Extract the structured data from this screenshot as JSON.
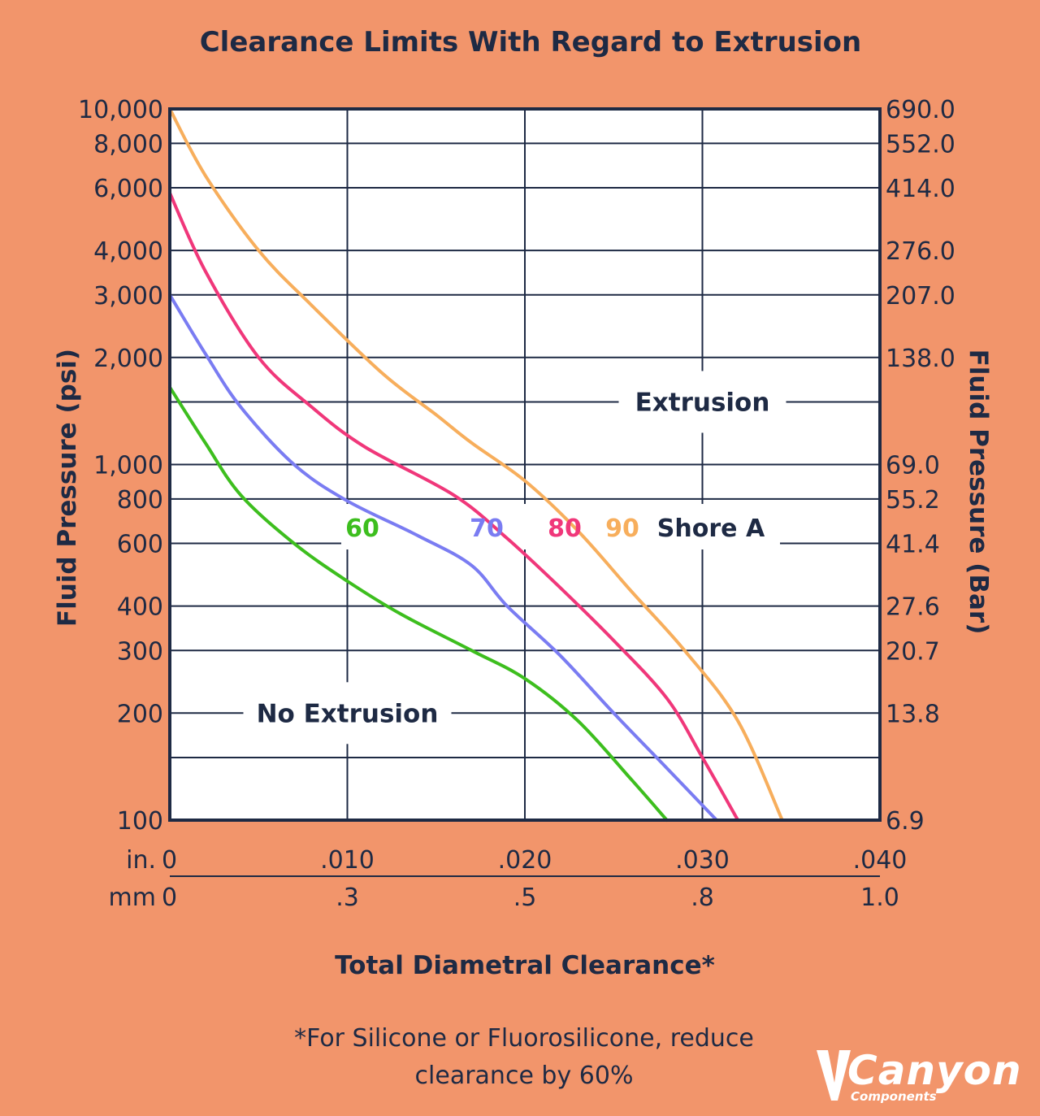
{
  "title": "Clearance Limits With Regard to Extrusion",
  "footnote_line1": "*For Silicone or Fluorosilicone, reduce",
  "footnote_line2": "clearance by 60%",
  "logo": {
    "name": "Canyon",
    "sub": "Components"
  },
  "colors": {
    "background": "#F2956B",
    "text": "#1E2A44",
    "shore_60": "#3DBE1E",
    "shore_70": "#7A7CF2",
    "shore_80": "#F0377A",
    "shore_90": "#F7AE5C"
  },
  "chart_data": {
    "type": "line",
    "title": "Clearance Limits With Regard to Extrusion",
    "xlabel": "Total Diametral Clearance*",
    "ylabel_left": "Fluid Pressure (psi)",
    "ylabel_right": "Fluid Pressure (Bar)",
    "x_scale": "linear",
    "y_scale": "log",
    "xlim": [
      0,
      0.04
    ],
    "ylim": [
      100,
      10000
    ],
    "grid": true,
    "x_axis_in": {
      "unit_label": "in.",
      "ticks": [
        0,
        0.01,
        0.02,
        0.03,
        0.04
      ],
      "tick_labels": [
        "0",
        ".010",
        ".020",
        ".030",
        ".040"
      ]
    },
    "x_axis_mm": {
      "unit_label": "mm",
      "ticks": [
        0,
        0.01,
        0.02,
        0.03,
        0.04
      ],
      "tick_labels": [
        "0",
        ".3",
        ".5",
        ".8",
        "1.0"
      ]
    },
    "y_left_ticks": [
      10000,
      8000,
      6000,
      4000,
      3000,
      2000,
      1000,
      800,
      600,
      400,
      300,
      200,
      100
    ],
    "y_left_tick_labels": [
      "10,000",
      "8,000",
      "6,000",
      "4,000",
      "3,000",
      "2,000",
      "1,000",
      "800",
      "600",
      "400",
      "300",
      "200",
      "100"
    ],
    "y_right_ticks": [
      10000,
      8000,
      6000,
      4000,
      3000,
      2000,
      1000,
      800,
      600,
      400,
      300,
      200,
      100
    ],
    "y_right_tick_labels": [
      "690.0",
      "552.0",
      "414.0",
      "276.0",
      "207.0",
      "138.0",
      "69.0",
      "55.2",
      "41.4",
      "27.6",
      "20.7",
      "13.8",
      "6.9"
    ],
    "y_extra_gridlines": [
      1500,
      150
    ],
    "region_labels": {
      "upper": "Extrusion",
      "lower": "No Extrusion"
    },
    "shore_label": "Shore A",
    "series": [
      {
        "name": "60",
        "color": "#3DBE1E",
        "x": [
          0,
          0.002,
          0.004,
          0.007,
          0.01,
          0.013,
          0.017,
          0.02,
          0.023,
          0.026,
          0.028
        ],
        "y": [
          1650,
          1150,
          820,
          600,
          470,
          380,
          300,
          250,
          190,
          130,
          100
        ]
      },
      {
        "name": "70",
        "color": "#7A7CF2",
        "x": [
          0,
          0.002,
          0.004,
          0.007,
          0.01,
          0.014,
          0.017,
          0.019,
          0.022,
          0.025,
          0.028,
          0.0308
        ],
        "y": [
          3000,
          2050,
          1450,
          1000,
          790,
          630,
          520,
          400,
          290,
          200,
          140,
          100
        ]
      },
      {
        "name": "80",
        "color": "#F0377A",
        "x": [
          0,
          0.002,
          0.005,
          0.008,
          0.011,
          0.016,
          0.019,
          0.022,
          0.025,
          0.028,
          0.03,
          0.032
        ],
        "y": [
          5800,
          3500,
          2000,
          1450,
          1120,
          820,
          620,
          450,
          320,
          220,
          150,
          100
        ]
      },
      {
        "name": "90",
        "color": "#F7AE5C",
        "x": [
          0,
          0.002,
          0.005,
          0.008,
          0.012,
          0.015,
          0.017,
          0.02,
          0.023,
          0.026,
          0.029,
          0.032,
          0.0345
        ],
        "y": [
          10000,
          6500,
          4000,
          2800,
          1800,
          1380,
          1150,
          900,
          650,
          440,
          300,
          190,
          100
        ]
      }
    ]
  }
}
